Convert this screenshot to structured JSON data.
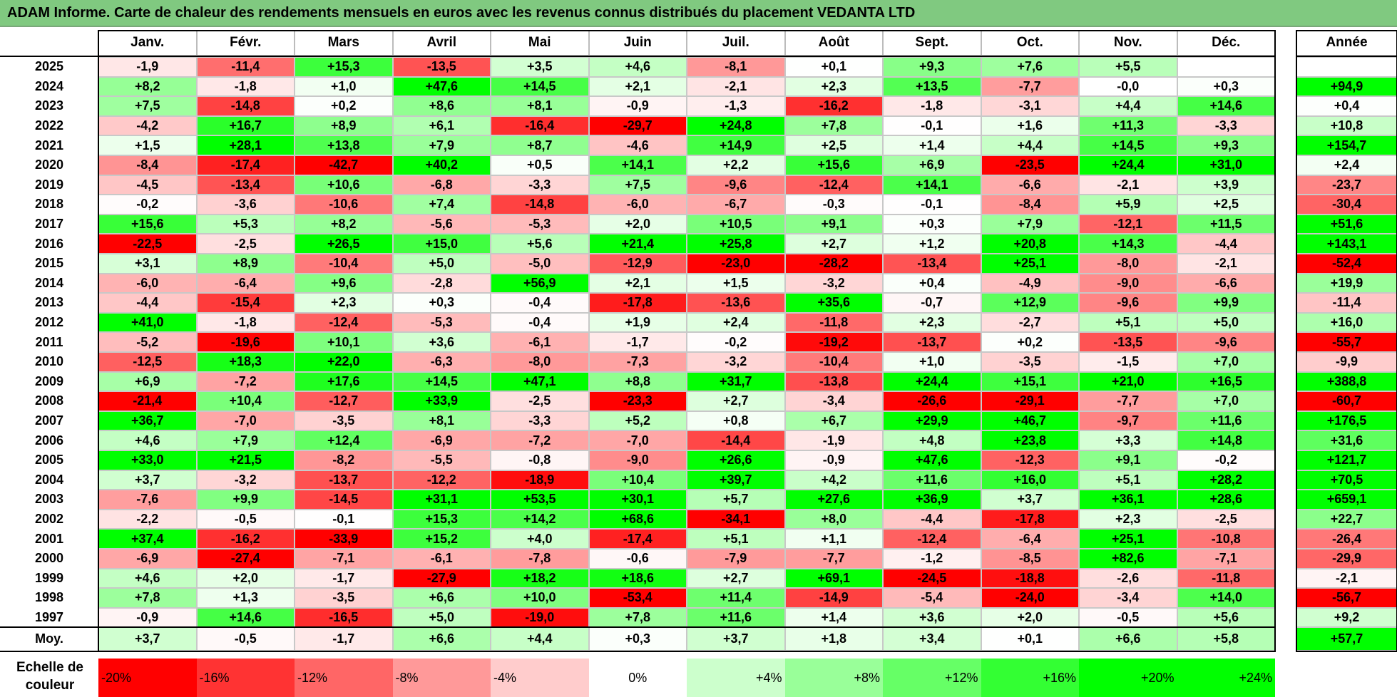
{
  "title": "ADAM Informe. Carte de chaleur des rendements mensuels en euros avec les revenus connus distribués du placement VEDANTA LTD",
  "chart_data": {
    "type": "heatmap",
    "title": "ADAM Informe. Carte de chaleur des rendements mensuels en euros avec les revenus connus distribués du placement VEDANTA LTD",
    "months": [
      "Janv.",
      "Févr.",
      "Mars",
      "Avril",
      "Mai",
      "Juin",
      "Juil.",
      "Août",
      "Sept.",
      "Oct.",
      "Nov.",
      "Déc."
    ],
    "year_header": "Année",
    "average_label": "Moy.",
    "rows": [
      {
        "year": "2025",
        "values": [
          "-1,9",
          "-11,4",
          "+15,3",
          "-13,5",
          "+3,5",
          "+4,6",
          "-8,1",
          "+0,1",
          "+9,3",
          "+7,6",
          "+5,5",
          ""
        ],
        "annual": ""
      },
      {
        "year": "2024",
        "values": [
          "+8,2",
          "-1,8",
          "+1,0",
          "+47,6",
          "+14,5",
          "+2,1",
          "-2,1",
          "+2,3",
          "+13,5",
          "-7,7",
          "-0,0",
          "+0,3"
        ],
        "annual": "+94,9"
      },
      {
        "year": "2023",
        "values": [
          "+7,5",
          "-14,8",
          "+0,2",
          "+8,6",
          "+8,1",
          "-0,9",
          "-1,3",
          "-16,2",
          "-1,8",
          "-3,1",
          "+4,4",
          "+14,6"
        ],
        "annual": "+0,4"
      },
      {
        "year": "2022",
        "values": [
          "-4,2",
          "+16,7",
          "+8,9",
          "+6,1",
          "-16,4",
          "-29,7",
          "+24,8",
          "+7,8",
          "-0,1",
          "+1,6",
          "+11,3",
          "-3,3"
        ],
        "annual": "+10,8"
      },
      {
        "year": "2021",
        "values": [
          "+1,5",
          "+28,1",
          "+13,8",
          "+7,9",
          "+8,7",
          "-4,6",
          "+14,9",
          "+2,5",
          "+1,4",
          "+4,4",
          "+14,5",
          "+9,3"
        ],
        "annual": "+154,7"
      },
      {
        "year": "2020",
        "values": [
          "-8,4",
          "-17,4",
          "-42,7",
          "+40,2",
          "+0,5",
          "+14,1",
          "+2,2",
          "+15,6",
          "+6,9",
          "-23,5",
          "+24,4",
          "+31,0"
        ],
        "annual": "+2,4"
      },
      {
        "year": "2019",
        "values": [
          "-4,5",
          "-13,4",
          "+10,6",
          "-6,8",
          "-3,3",
          "+7,5",
          "-9,6",
          "-12,4",
          "+14,1",
          "-6,6",
          "-2,1",
          "+3,9"
        ],
        "annual": "-23,7"
      },
      {
        "year": "2018",
        "values": [
          "-0,2",
          "-3,6",
          "-10,6",
          "+7,4",
          "-14,8",
          "-6,0",
          "-6,7",
          "-0,3",
          "-0,1",
          "-8,4",
          "+5,9",
          "+2,5"
        ],
        "annual": "-30,4"
      },
      {
        "year": "2017",
        "values": [
          "+15,6",
          "+5,3",
          "+8,2",
          "-5,6",
          "-5,3",
          "+2,0",
          "+10,5",
          "+9,1",
          "+0,3",
          "+7,9",
          "-12,1",
          "+11,5"
        ],
        "annual": "+51,6"
      },
      {
        "year": "2016",
        "values": [
          "-22,5",
          "-2,5",
          "+26,5",
          "+15,0",
          "+5,6",
          "+21,4",
          "+25,8",
          "+2,7",
          "+1,2",
          "+20,8",
          "+14,3",
          "-4,4"
        ],
        "annual": "+143,1"
      },
      {
        "year": "2015",
        "values": [
          "+3,1",
          "+8,9",
          "-10,4",
          "+5,0",
          "-5,0",
          "-12,9",
          "-23,0",
          "-28,2",
          "-13,4",
          "+25,1",
          "-8,0",
          "-2,1"
        ],
        "annual": "-52,4"
      },
      {
        "year": "2014",
        "values": [
          "-6,0",
          "-6,4",
          "+9,6",
          "-2,8",
          "+56,9",
          "+2,1",
          "+1,5",
          "-3,2",
          "+0,4",
          "-4,9",
          "-9,0",
          "-6,6"
        ],
        "annual": "+19,9"
      },
      {
        "year": "2013",
        "values": [
          "-4,4",
          "-15,4",
          "+2,3",
          "+0,3",
          "-0,4",
          "-17,8",
          "-13,6",
          "+35,6",
          "-0,7",
          "+12,9",
          "-9,6",
          "+9,9"
        ],
        "annual": "-11,4"
      },
      {
        "year": "2012",
        "values": [
          "+41,0",
          "-1,8",
          "-12,4",
          "-5,3",
          "-0,4",
          "+1,9",
          "+2,4",
          "-11,8",
          "+2,3",
          "-2,7",
          "+5,1",
          "+5,0"
        ],
        "annual": "+16,0"
      },
      {
        "year": "2011",
        "values": [
          "-5,2",
          "-19,6",
          "+10,1",
          "+3,6",
          "-6,1",
          "-1,7",
          "-0,2",
          "-19,2",
          "-13,7",
          "+0,2",
          "-13,5",
          "-9,6"
        ],
        "annual": "-55,7"
      },
      {
        "year": "2010",
        "values": [
          "-12,5",
          "+18,3",
          "+22,0",
          "-6,3",
          "-8,0",
          "-7,3",
          "-3,2",
          "-10,4",
          "+1,0",
          "-3,5",
          "-1,5",
          "+7,0"
        ],
        "annual": "-9,9"
      },
      {
        "year": "2009",
        "values": [
          "+6,9",
          "-7,2",
          "+17,6",
          "+14,5",
          "+47,1",
          "+8,8",
          "+31,7",
          "-13,8",
          "+24,4",
          "+15,1",
          "+21,0",
          "+16,5"
        ],
        "annual": "+388,8"
      },
      {
        "year": "2008",
        "values": [
          "-21,4",
          "+10,4",
          "-12,7",
          "+33,9",
          "-2,5",
          "-23,3",
          "+2,7",
          "-3,4",
          "-26,6",
          "-29,1",
          "-7,7",
          "+7,0"
        ],
        "annual": "-60,7"
      },
      {
        "year": "2007",
        "values": [
          "+36,7",
          "-7,0",
          "-3,5",
          "+8,1",
          "-3,3",
          "+5,2",
          "+0,8",
          "+6,7",
          "+29,9",
          "+46,7",
          "-9,7",
          "+11,6"
        ],
        "annual": "+176,5"
      },
      {
        "year": "2006",
        "values": [
          "+4,6",
          "+7,9",
          "+12,4",
          "-6,9",
          "-7,2",
          "-7,0",
          "-14,4",
          "-1,9",
          "+4,8",
          "+23,8",
          "+3,3",
          "+14,8"
        ],
        "annual": "+31,6"
      },
      {
        "year": "2005",
        "values": [
          "+33,0",
          "+21,5",
          "-8,2",
          "-5,5",
          "-0,8",
          "-9,0",
          "+26,6",
          "-0,9",
          "+47,6",
          "-12,3",
          "+9,1",
          "-0,2"
        ],
        "annual": "+121,7"
      },
      {
        "year": "2004",
        "values": [
          "+3,7",
          "-3,2",
          "-13,7",
          "-12,2",
          "-18,9",
          "+10,4",
          "+39,7",
          "+4,2",
          "+11,6",
          "+16,0",
          "+5,1",
          "+28,2"
        ],
        "annual": "+70,5"
      },
      {
        "year": "2003",
        "values": [
          "-7,6",
          "+9,9",
          "-14,5",
          "+31,1",
          "+53,5",
          "+30,1",
          "+5,7",
          "+27,6",
          "+36,9",
          "+3,7",
          "+36,1",
          "+28,6"
        ],
        "annual": "+659,1"
      },
      {
        "year": "2002",
        "values": [
          "-2,2",
          "-0,5",
          "-0,1",
          "+15,3",
          "+14,2",
          "+68,6",
          "-34,1",
          "+8,0",
          "-4,4",
          "-17,8",
          "+2,3",
          "-2,5"
        ],
        "annual": "+22,7"
      },
      {
        "year": "2001",
        "values": [
          "+37,4",
          "-16,2",
          "-33,9",
          "+15,2",
          "+4,0",
          "-17,4",
          "+5,1",
          "+1,1",
          "-12,4",
          "-6,4",
          "+25,1",
          "-10,8"
        ],
        "annual": "-26,4"
      },
      {
        "year": "2000",
        "values": [
          "-6,9",
          "-27,4",
          "-7,1",
          "-6,1",
          "-7,8",
          "-0,6",
          "-7,9",
          "-7,7",
          "-1,2",
          "-8,5",
          "+82,6",
          "-7,1"
        ],
        "annual": "-29,9"
      },
      {
        "year": "1999",
        "values": [
          "+4,6",
          "+2,0",
          "-1,7",
          "-27,9",
          "+18,2",
          "+18,6",
          "+2,7",
          "+69,1",
          "-24,5",
          "-18,8",
          "-2,6",
          "-11,8"
        ],
        "annual": "-2,1"
      },
      {
        "year": "1998",
        "values": [
          "+7,8",
          "+1,3",
          "-3,5",
          "+6,6",
          "+10,0",
          "-53,4",
          "+11,4",
          "-14,9",
          "-5,4",
          "-24,0",
          "-3,4",
          "+14,0"
        ],
        "annual": "-56,7"
      },
      {
        "year": "1997",
        "values": [
          "-0,9",
          "+14,6",
          "-16,5",
          "+5,0",
          "-19,0",
          "+7,8",
          "+11,6",
          "+1,4",
          "+3,6",
          "+2,0",
          "-0,5",
          "+5,6"
        ],
        "annual": "+9,2"
      }
    ],
    "average": {
      "values": [
        "+3,7",
        "-0,5",
        "-1,7",
        "+6,6",
        "+4,4",
        "+0,3",
        "+3,7",
        "+1,8",
        "+3,4",
        "+0,1",
        "+6,6",
        "+5,8"
      ],
      "annual": "+57,7"
    },
    "color_scale": {
      "label": "Echelle de couleur",
      "steps": [
        {
          "label": "-20%",
          "value": -20
        },
        {
          "label": "-16%",
          "value": -16
        },
        {
          "label": "-12%",
          "value": -12
        },
        {
          "label": "-8%",
          "value": -8
        },
        {
          "label": "-4%",
          "value": -4
        },
        {
          "label": "0%",
          "value": 0
        },
        {
          "label": "+4%",
          "value": 4
        },
        {
          "label": "+8%",
          "value": 8
        },
        {
          "label": "+12%",
          "value": 12
        },
        {
          "label": "+16%",
          "value": 16
        },
        {
          "label": "+20%",
          "value": 20
        },
        {
          "label": "+24%",
          "value": 24
        }
      ],
      "negative_color": "#ff0000",
      "positive_color": "#00ff00",
      "neutral_color": "#ffffff"
    }
  }
}
